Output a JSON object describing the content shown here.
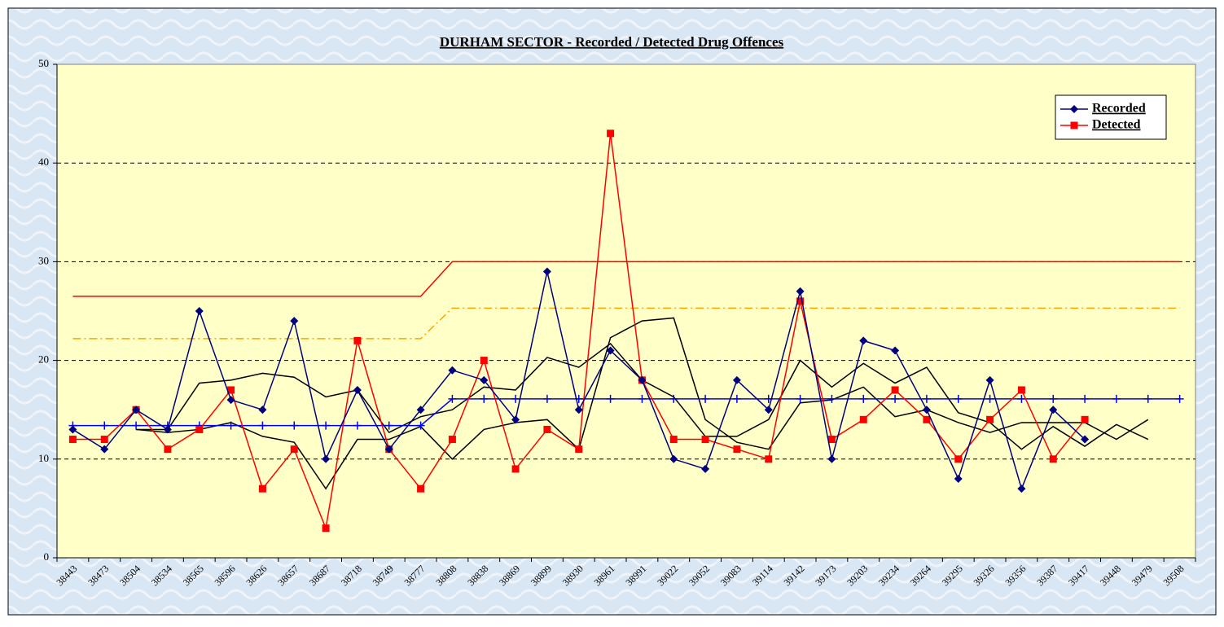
{
  "chart_data": {
    "type": "line",
    "title": "DURHAM SECTOR - Recorded / Detected Drug Offences",
    "categories": [
      "38443",
      "38473",
      "38504",
      "38534",
      "38565",
      "38596",
      "38626",
      "38657",
      "38687",
      "38718",
      "38749",
      "38777",
      "38808",
      "38838",
      "38869",
      "38899",
      "38930",
      "38961",
      "38991",
      "39022",
      "39052",
      "39083",
      "39114",
      "39142",
      "39173",
      "39203",
      "39234",
      "39264",
      "39295",
      "39326",
      "39356",
      "39387",
      "39417",
      "39448",
      "39479",
      "39508"
    ],
    "ylim": [
      0,
      50
    ],
    "yticks": [
      0,
      10,
      20,
      30,
      40,
      50
    ],
    "grid": true,
    "legend": "top-right",
    "series": [
      {
        "name": "Recorded",
        "color": "#000080",
        "marker": "diamond",
        "values": [
          13,
          11,
          15,
          13,
          25,
          16,
          15,
          24,
          10,
          17,
          11,
          15,
          19,
          18,
          14,
          29,
          15,
          21,
          18,
          10,
          9,
          18,
          15,
          27,
          10,
          22,
          21,
          15,
          8,
          18,
          7,
          15,
          12,
          null,
          null,
          null
        ]
      },
      {
        "name": "Detected",
        "color": "#ff0000",
        "marker": "square",
        "values": [
          12,
          12,
          15,
          11,
          13,
          17,
          7,
          11,
          3,
          22,
          11,
          7,
          12,
          20,
          9,
          13,
          11,
          43,
          18,
          12,
          12,
          11,
          10,
          26,
          12,
          14,
          17,
          14,
          10,
          14,
          17,
          10,
          14,
          null,
          null,
          null
        ]
      },
      {
        "color": "#0000ff",
        "marker": "plus",
        "values": [
          13.4,
          13.4,
          13.4,
          13.4,
          13.4,
          13.4,
          13.4,
          13.4,
          13.4,
          13.4,
          13.4,
          13.4,
          16.1,
          16.1,
          16.1,
          16.1,
          16.1,
          16.1,
          16.1,
          16.1,
          16.1,
          16.1,
          16.1,
          16.1,
          16.1,
          16.1,
          16.1,
          16.1,
          16.1,
          16.1,
          16.1,
          16.1,
          16.1,
          16.1,
          16.1,
          16.1
        ]
      },
      {
        "color": "#ff0000",
        "values": [
          26.5,
          26.5,
          26.5,
          26.5,
          26.5,
          26.5,
          26.5,
          26.5,
          26.5,
          26.5,
          26.5,
          26.5,
          30,
          30,
          30,
          30,
          30,
          30,
          30,
          30,
          30,
          30,
          30,
          30,
          30,
          30,
          30,
          30,
          30,
          30,
          30,
          30,
          30,
          30,
          30,
          30
        ]
      },
      {
        "color": "#ffa500",
        "dash": "dashdot",
        "values": [
          22.2,
          22.2,
          22.2,
          22.2,
          22.2,
          22.2,
          22.2,
          22.2,
          22.2,
          22.2,
          22.2,
          22.2,
          25.3,
          25.3,
          25.3,
          25.3,
          25.3,
          25.3,
          25.3,
          25.3,
          25.3,
          25.3,
          25.3,
          25.3,
          25.3,
          25.3,
          25.3,
          25.3,
          25.3,
          25.3,
          25.3,
          25.3,
          25.3,
          25.3,
          25.3,
          25.3
        ]
      },
      {
        "color": "#000000",
        "values": [
          null,
          null,
          13,
          13,
          17.7,
          18,
          18.7,
          18.3,
          16.3,
          17,
          12.7,
          14.3,
          15,
          17.3,
          17,
          20.3,
          19.3,
          21.7,
          18,
          16.3,
          12.3,
          12.3,
          14,
          20,
          17.3,
          19.7,
          17.7,
          19.3,
          14.7,
          13.7,
          11,
          13.3,
          11.3,
          13.5,
          12,
          null
        ]
      },
      {
        "color": "#000000",
        "values": [
          null,
          null,
          13,
          12.7,
          13,
          13.7,
          12.3,
          11.7,
          7,
          12,
          12,
          13.3,
          10,
          13,
          13.7,
          14,
          11,
          22.3,
          24,
          24.3,
          14,
          11.7,
          11,
          15.7,
          16,
          17.3,
          14.3,
          15,
          13.7,
          12.7,
          13.7,
          13.7,
          13.7,
          12,
          14,
          null
        ]
      }
    ]
  }
}
